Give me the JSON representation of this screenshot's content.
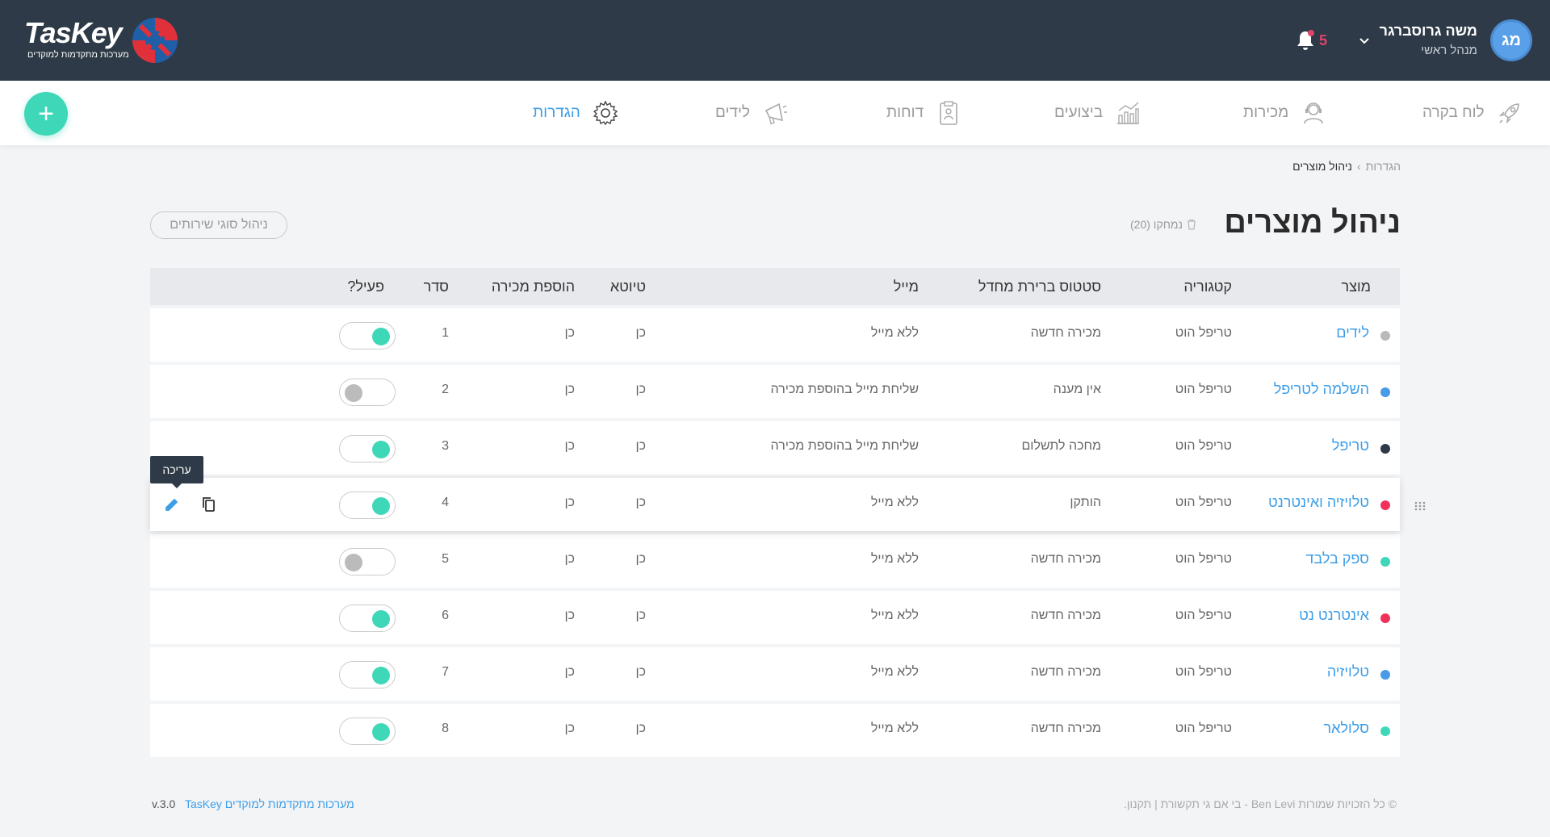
{
  "header": {
    "logo_text": "TasKey",
    "logo_sub": "מערכות מתקדמות למוקדים",
    "user_initials": "מג",
    "user_name": "משה גרוסברגר",
    "user_role": "מנהל ראשי",
    "notifications_count": "5"
  },
  "nav": {
    "items": [
      {
        "label": "לוח בקרה",
        "icon": "rocket-icon"
      },
      {
        "label": "מכירות",
        "icon": "headset-agent-icon"
      },
      {
        "label": "ביצועים",
        "icon": "bar-chart-icon"
      },
      {
        "label": "דוחות",
        "icon": "clipboard-report-icon"
      },
      {
        "label": "לידים",
        "icon": "megaphone-icon"
      },
      {
        "label": "הגדרות",
        "icon": "gear-icon"
      }
    ],
    "active": "הגדרות"
  },
  "breadcrumb": {
    "parent": "הגדרות",
    "separator": "›",
    "current": "ניהול מוצרים"
  },
  "page": {
    "title": "ניהול מוצרים",
    "deleted_label": "נמחקו (20)",
    "services_button": "ניהול סוגי שירותים"
  },
  "table": {
    "headers": {
      "product": "מוצר",
      "category": "קטגוריה",
      "status": "סטטוס ברירת מחדל",
      "mail": "מייל",
      "draft": "טיוטא",
      "add_sale": "הוספת מכירה",
      "order": "סדר",
      "active": "פעיל?"
    },
    "rows": [
      {
        "name": "לידים",
        "dot": "#b9b9b9",
        "category": "טריפל הוט",
        "status": "מכירה חדשה",
        "mail": "ללא מייל",
        "draft": "כן",
        "add_sale": "כן",
        "order": "1",
        "active": true
      },
      {
        "name": "השלמה לטריפל",
        "dot": "#4a9ae6",
        "category": "טריפל הוט",
        "status": "אין מענה",
        "mail": "שליחת מייל בהוספת מכירה",
        "draft": "כן",
        "add_sale": "כן",
        "order": "2",
        "active": false
      },
      {
        "name": "טריפל",
        "dot": "#2e3a47",
        "category": "טריפל הוט",
        "status": "מחכה לתשלום",
        "mail": "שליחת מייל בהוספת מכירה",
        "draft": "כן",
        "add_sale": "כן",
        "order": "3",
        "active": true
      },
      {
        "name": "טלויזיה ואינטרנט",
        "dot": "#f0325a",
        "category": "טריפל הוט",
        "status": "הותקן",
        "mail": "ללא מייל",
        "draft": "כן",
        "add_sale": "כן",
        "order": "4",
        "active": true
      },
      {
        "name": "ספק בלבד",
        "dot": "#3ed8b8",
        "category": "טריפל הוט",
        "status": "מכירה חדשה",
        "mail": "ללא מייל",
        "draft": "כן",
        "add_sale": "כן",
        "order": "5",
        "active": false
      },
      {
        "name": "אינטרנט נט",
        "dot": "#f0325a",
        "category": "טריפל הוט",
        "status": "מכירה חדשה",
        "mail": "ללא מייל",
        "draft": "כן",
        "add_sale": "כן",
        "order": "6",
        "active": true
      },
      {
        "name": "טלויזיה",
        "dot": "#4a9ae6",
        "category": "טריפל הוט",
        "status": "מכירה חדשה",
        "mail": "ללא מייל",
        "draft": "כן",
        "add_sale": "כן",
        "order": "7",
        "active": true
      },
      {
        "name": "סלולאר",
        "dot": "#3ed8b8",
        "category": "טריפל הוט",
        "status": "מכירה חדשה",
        "mail": "ללא מייל",
        "draft": "כן",
        "add_sale": "כן",
        "order": "8",
        "active": true
      }
    ],
    "edit_tooltip": "עריכה"
  },
  "footer": {
    "rights": "© כל הזכויות שמורות Ben Levi - בי אם גי תקשורת | תקנון.",
    "version": "v.3.0",
    "brand": "TasKey מערכות מתקדמות למוקדים"
  }
}
